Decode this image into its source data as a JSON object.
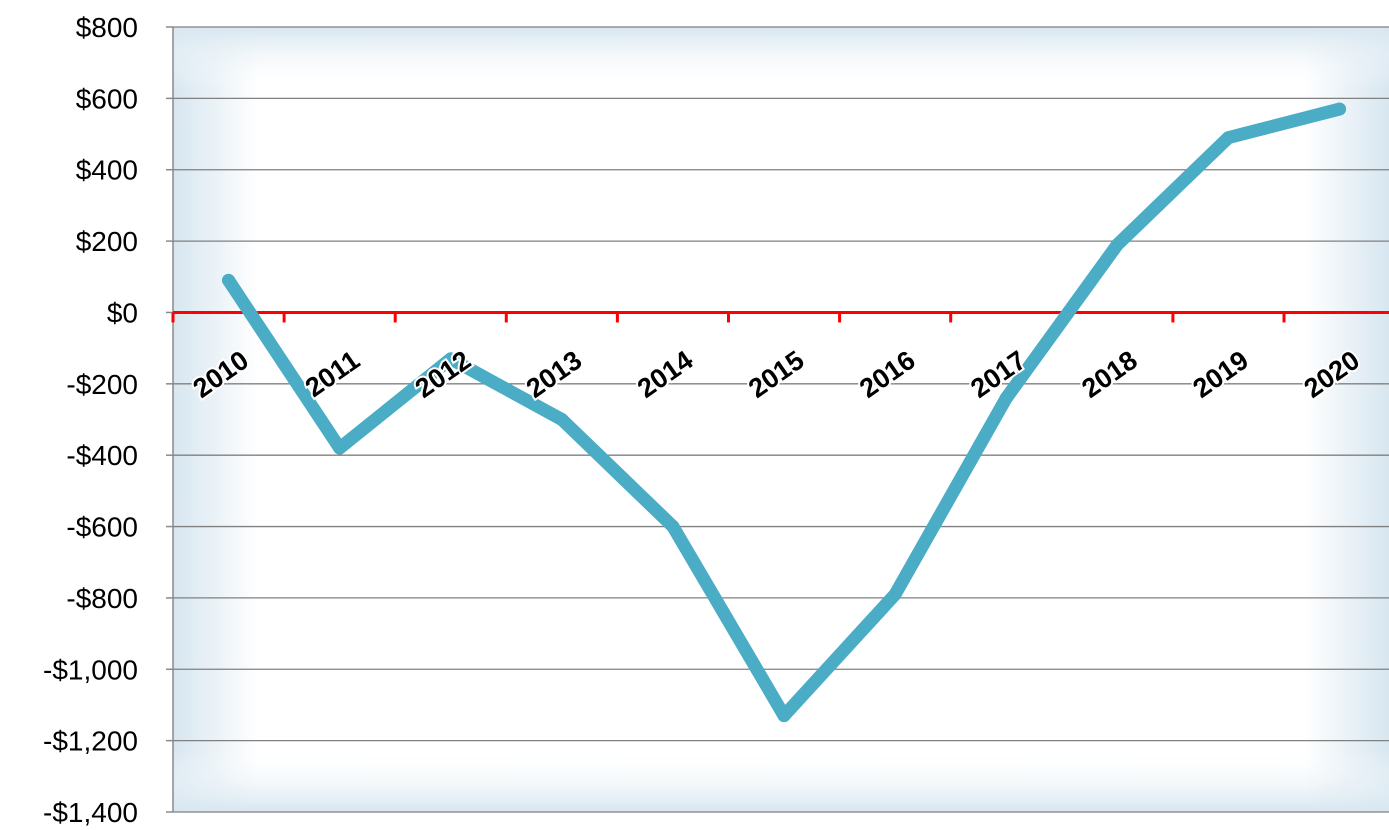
{
  "chart_data": {
    "type": "line",
    "title": "",
    "xlabel": "",
    "ylabel": "",
    "ylim": [
      -1400,
      800
    ],
    "y_ticks": [
      800,
      600,
      400,
      200,
      0,
      -200,
      -400,
      -600,
      -800,
      -1000,
      -1200,
      -1400
    ],
    "y_tick_labels": [
      "$800",
      "$600",
      "$400",
      "$200",
      "$0",
      "-$200",
      "-$400",
      "-$600",
      "-$800",
      "-$1,000",
      "-$1,200",
      "-$1,400"
    ],
    "categories": [
      "2010",
      "2011",
      "2012",
      "2013",
      "2014",
      "2015",
      "2016",
      "2017",
      "2018",
      "2019",
      "2020"
    ],
    "series": [
      {
        "values": [
          90,
          -380,
          -130,
          -300,
          -600,
          -1130,
          -790,
          -240,
          190,
          490,
          570
        ]
      }
    ],
    "baseline_value": 0,
    "grid": true,
    "legend": "none",
    "colors": {
      "line": "#4bacc6",
      "baseline": "#ff0000",
      "gridline": "#808080",
      "plot_background_center": "#ffffff",
      "plot_background_edge": "#d7e6f0"
    }
  }
}
